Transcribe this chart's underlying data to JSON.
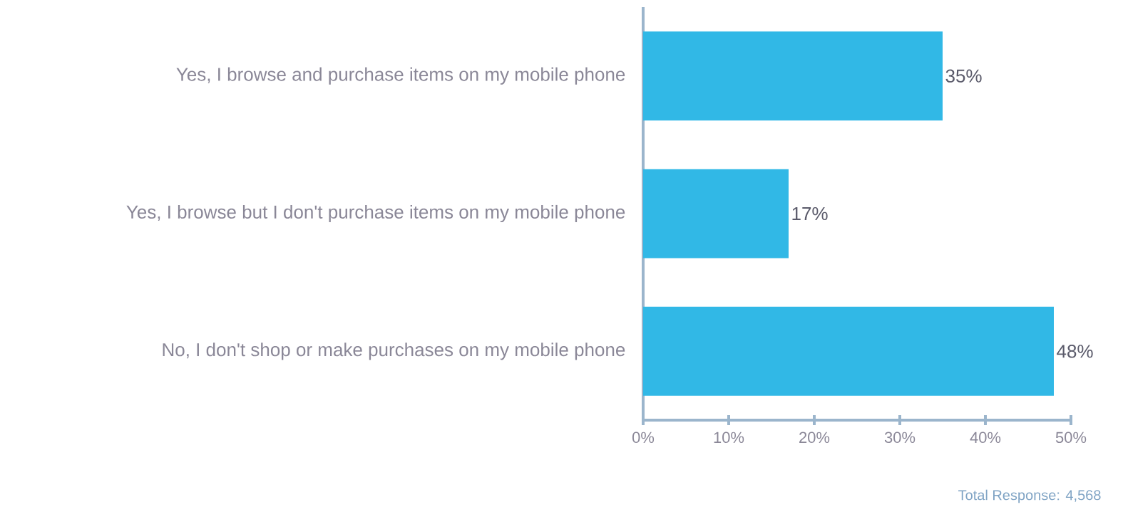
{
  "chart_data": {
    "type": "bar",
    "orientation": "horizontal",
    "categories": [
      "Yes, I browse and purchase items on my mobile phone",
      "Yes, I browse but I don't purchase items on my mobile phone",
      "No, I don't shop or make purchases on my mobile phone"
    ],
    "values": [
      35,
      17,
      48
    ],
    "value_labels": [
      "35%",
      "17%",
      "48%"
    ],
    "color": "#31b8e6",
    "xlim": [
      0,
      50
    ],
    "xticks": [
      {
        "value": 0,
        "label": "0%"
      },
      {
        "value": 10,
        "label": "10%"
      },
      {
        "value": 20,
        "label": "20%"
      },
      {
        "value": 30,
        "label": "30%"
      },
      {
        "value": 40,
        "label": "40%"
      },
      {
        "value": 50,
        "label": "50%"
      }
    ],
    "annotations": [
      "Total Response: 4,568"
    ]
  }
}
